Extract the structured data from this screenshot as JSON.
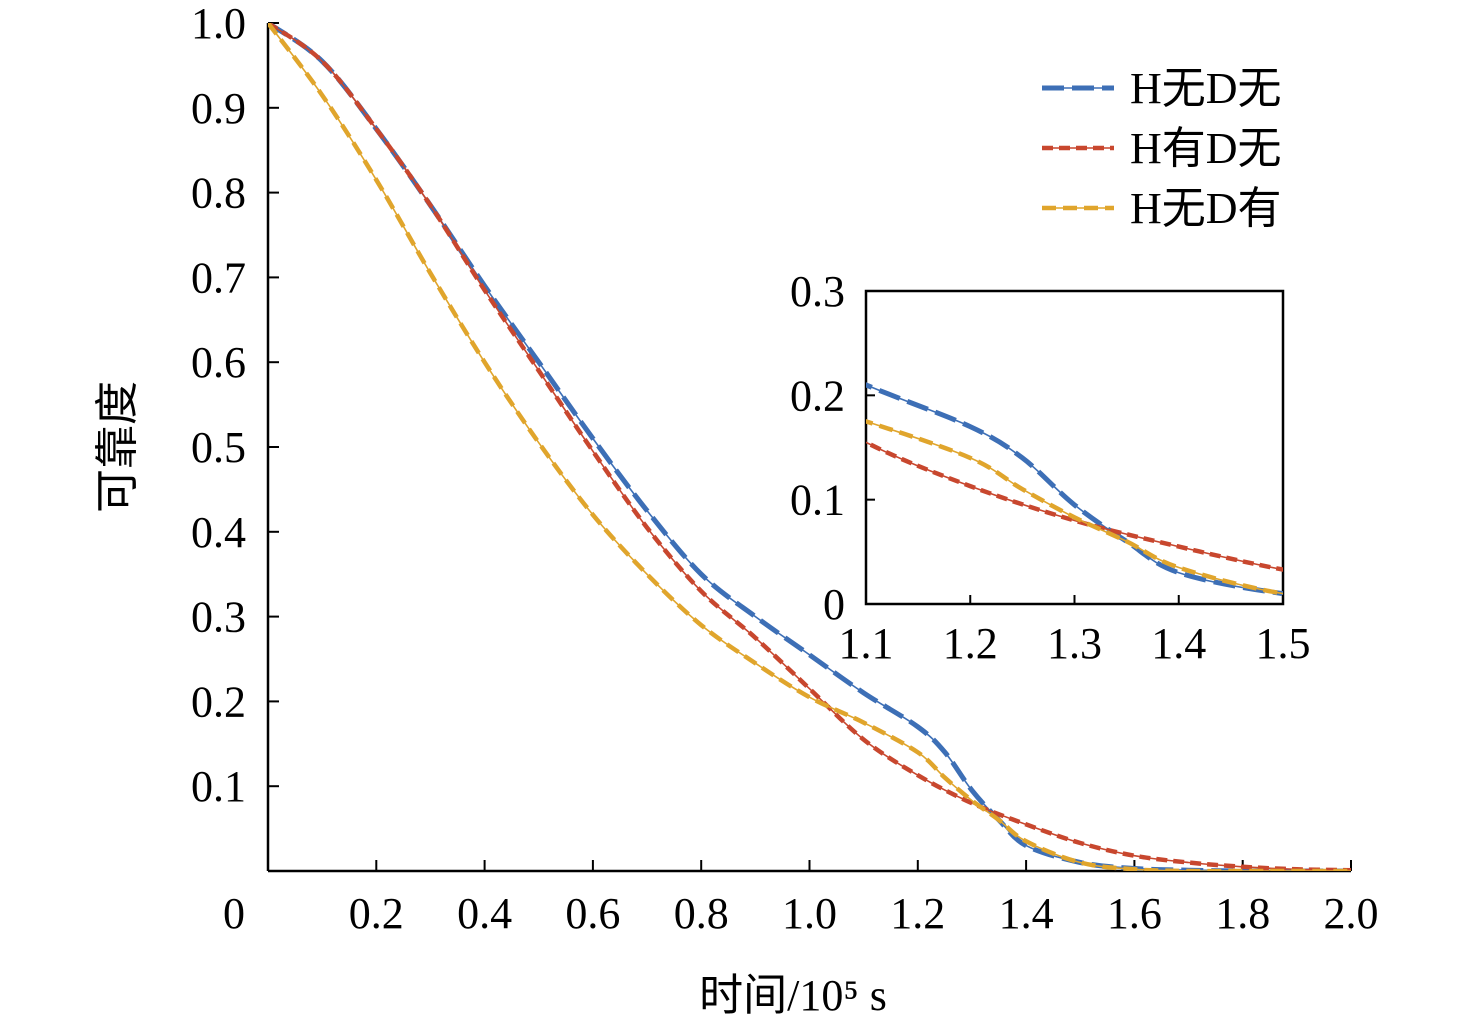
{
  "chart_data": {
    "type": "line",
    "xlabel": "时间/10⁵ s",
    "ylabel": "可靠度",
    "xlim": [
      0,
      2.0
    ],
    "ylim": [
      0,
      1.0
    ],
    "x_ticks": [
      "0",
      "0.2",
      "0.4",
      "0.6",
      "0.8",
      "1.0",
      "1.2",
      "1.4",
      "1.6",
      "1.8",
      "2.0"
    ],
    "y_ticks": [
      "0.1",
      "0.2",
      "0.3",
      "0.4",
      "0.5",
      "0.6",
      "0.7",
      "0.8",
      "0.9",
      "1.0"
    ],
    "legend_position": "top-right",
    "series": [
      {
        "name": "H无D无",
        "color": "#3d6fb6",
        "dash_style": "long-dash",
        "x": [
          0,
          0.1,
          0.2,
          0.3,
          0.4,
          0.5,
          0.6,
          0.7,
          0.8,
          0.9,
          1.0,
          1.1,
          1.2,
          1.25,
          1.3,
          1.35,
          1.4,
          1.5,
          1.6,
          1.7,
          1.8,
          1.9,
          2.0
        ],
        "y": [
          1.0,
          0.955,
          0.875,
          0.785,
          0.69,
          0.6,
          0.51,
          0.425,
          0.35,
          0.3,
          0.255,
          0.21,
          0.17,
          0.14,
          0.095,
          0.06,
          0.03,
          0.01,
          0.003,
          0.001,
          0.0,
          0.0,
          0.0
        ]
      },
      {
        "name": "H有D无",
        "color": "#c8472e",
        "dash_style": "short-dash",
        "x": [
          0,
          0.1,
          0.2,
          0.3,
          0.4,
          0.5,
          0.6,
          0.7,
          0.8,
          0.9,
          1.0,
          1.1,
          1.2,
          1.3,
          1.4,
          1.5,
          1.6,
          1.7,
          1.8,
          1.9,
          2.0
        ],
        "y": [
          1.0,
          0.955,
          0.875,
          0.785,
          0.685,
          0.59,
          0.495,
          0.405,
          0.33,
          0.275,
          0.215,
          0.155,
          0.113,
          0.08,
          0.055,
          0.033,
          0.018,
          0.01,
          0.005,
          0.002,
          0.001
        ]
      },
      {
        "name": "H无D有",
        "color": "#e0a52c",
        "dash_style": "dash",
        "x": [
          0,
          0.1,
          0.2,
          0.3,
          0.4,
          0.5,
          0.6,
          0.7,
          0.8,
          0.9,
          1.0,
          1.1,
          1.2,
          1.25,
          1.3,
          1.35,
          1.4,
          1.5,
          1.6,
          1.7,
          1.8,
          1.9,
          2.0
        ],
        "y": [
          1.0,
          0.915,
          0.815,
          0.705,
          0.6,
          0.505,
          0.42,
          0.35,
          0.29,
          0.245,
          0.205,
          0.175,
          0.14,
          0.11,
          0.083,
          0.06,
          0.035,
          0.01,
          0.002,
          0.0,
          0.0,
          0.0,
          0.0
        ]
      }
    ],
    "inset": {
      "xlim": [
        1.1,
        1.5
      ],
      "ylim": [
        0,
        0.3
      ],
      "x_ticks": [
        "1.1",
        "1.2",
        "1.3",
        "1.4",
        "1.5"
      ],
      "y_ticks": [
        "0",
        "0.1",
        "0.2",
        "0.3"
      ]
    }
  }
}
